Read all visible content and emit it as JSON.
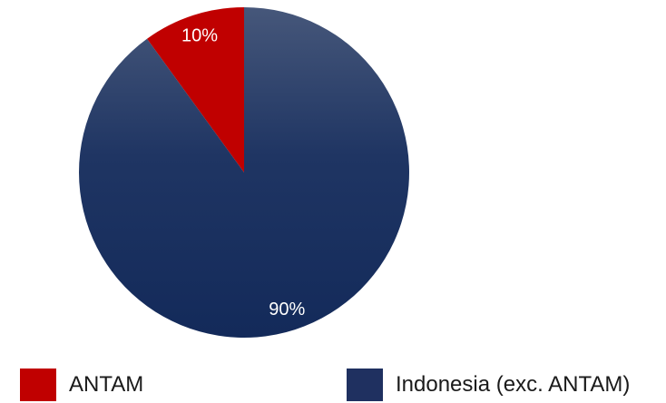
{
  "chart_data": {
    "type": "pie",
    "title": "",
    "slices": [
      {
        "label": "ANTAM",
        "value": 10,
        "value_label": "10%",
        "color": "#c00000"
      },
      {
        "label": "Indonesia (exc. ANTAM)",
        "value": 90,
        "value_label": "90%",
        "color": "#1f3060"
      }
    ],
    "start_angle_deg": -90,
    "direction": "counterclockwise",
    "legend_position": "bottom"
  }
}
